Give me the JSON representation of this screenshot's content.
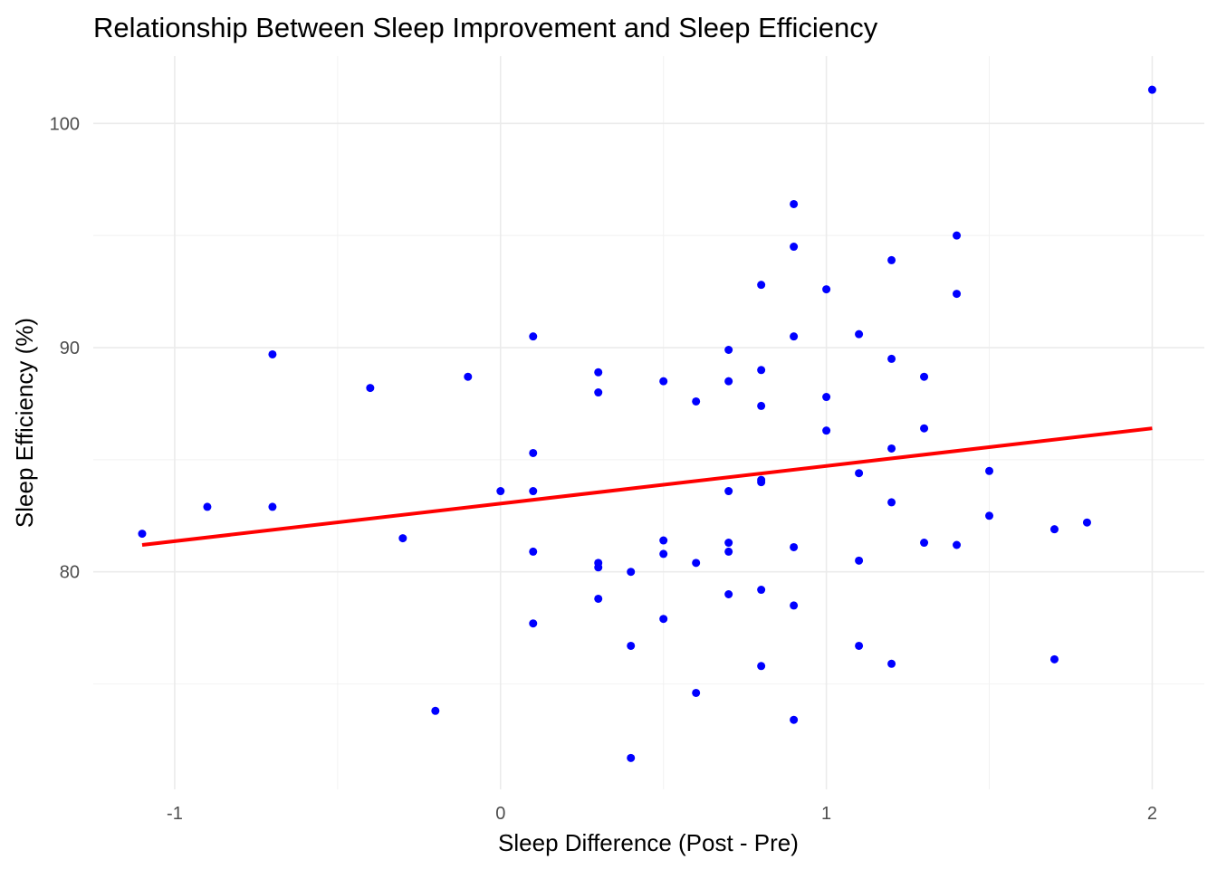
{
  "chart_data": {
    "type": "scatter",
    "title": "Relationship Between Sleep Improvement and Sleep Efficiency",
    "xlabel": "Sleep Difference (Post - Pre)",
    "ylabel": "Sleep Efficiency (%)",
    "xlim": [
      -1.25,
      2.16
    ],
    "ylim": [
      70.3,
      103.0
    ],
    "xticks": [
      -1,
      0,
      1,
      2
    ],
    "xtick_labels": [
      "-1",
      "0",
      "1",
      "2"
    ],
    "yticks": [
      80,
      90,
      100
    ],
    "ytick_labels": [
      "80",
      "90",
      "100"
    ],
    "grid": true,
    "point_color": "#0000ff",
    "line_color": "#ff0000",
    "points": [
      [
        -1.1,
        81.7
      ],
      [
        -0.9,
        82.9
      ],
      [
        -0.7,
        89.7
      ],
      [
        -0.7,
        82.9
      ],
      [
        -0.4,
        88.2
      ],
      [
        -0.3,
        81.5
      ],
      [
        -0.2,
        73.8
      ],
      [
        -0.1,
        88.7
      ],
      [
        0.0,
        83.6
      ],
      [
        0.1,
        90.5
      ],
      [
        0.1,
        85.3
      ],
      [
        0.1,
        83.6
      ],
      [
        0.1,
        80.9
      ],
      [
        0.1,
        77.7
      ],
      [
        0.3,
        88.9
      ],
      [
        0.3,
        88.0
      ],
      [
        0.3,
        80.4
      ],
      [
        0.3,
        80.2
      ],
      [
        0.3,
        78.8
      ],
      [
        0.4,
        80.0
      ],
      [
        0.4,
        76.7
      ],
      [
        0.4,
        71.7
      ],
      [
        0.5,
        88.5
      ],
      [
        0.5,
        81.4
      ],
      [
        0.5,
        80.8
      ],
      [
        0.5,
        77.9
      ],
      [
        0.6,
        87.6
      ],
      [
        0.6,
        80.4
      ],
      [
        0.6,
        74.6
      ],
      [
        0.7,
        89.9
      ],
      [
        0.7,
        88.5
      ],
      [
        0.7,
        83.6
      ],
      [
        0.7,
        81.3
      ],
      [
        0.7,
        80.9
      ],
      [
        0.7,
        79.0
      ],
      [
        0.8,
        92.8
      ],
      [
        0.8,
        89.0
      ],
      [
        0.8,
        87.4
      ],
      [
        0.8,
        84.1
      ],
      [
        0.8,
        84.0
      ],
      [
        0.8,
        79.2
      ],
      [
        0.8,
        75.8
      ],
      [
        0.9,
        96.4
      ],
      [
        0.9,
        94.5
      ],
      [
        0.9,
        90.5
      ],
      [
        0.9,
        81.1
      ],
      [
        0.9,
        78.5
      ],
      [
        0.9,
        73.4
      ],
      [
        1.0,
        92.6
      ],
      [
        1.0,
        87.8
      ],
      [
        1.0,
        86.3
      ],
      [
        1.1,
        90.6
      ],
      [
        1.1,
        84.4
      ],
      [
        1.1,
        80.5
      ],
      [
        1.1,
        76.7
      ],
      [
        1.2,
        93.9
      ],
      [
        1.2,
        89.5
      ],
      [
        1.2,
        85.5
      ],
      [
        1.2,
        83.1
      ],
      [
        1.2,
        75.9
      ],
      [
        1.3,
        88.7
      ],
      [
        1.3,
        86.4
      ],
      [
        1.3,
        81.3
      ],
      [
        1.4,
        95.0
      ],
      [
        1.4,
        92.4
      ],
      [
        1.4,
        81.2
      ],
      [
        1.5,
        84.5
      ],
      [
        1.5,
        82.5
      ],
      [
        1.7,
        81.9
      ],
      [
        1.7,
        76.1
      ],
      [
        1.8,
        82.2
      ],
      [
        2.0,
        101.5
      ]
    ],
    "trend_line": {
      "type": "linear",
      "from": [
        -1.1,
        81.2
      ],
      "to": [
        2.0,
        86.4
      ]
    }
  }
}
